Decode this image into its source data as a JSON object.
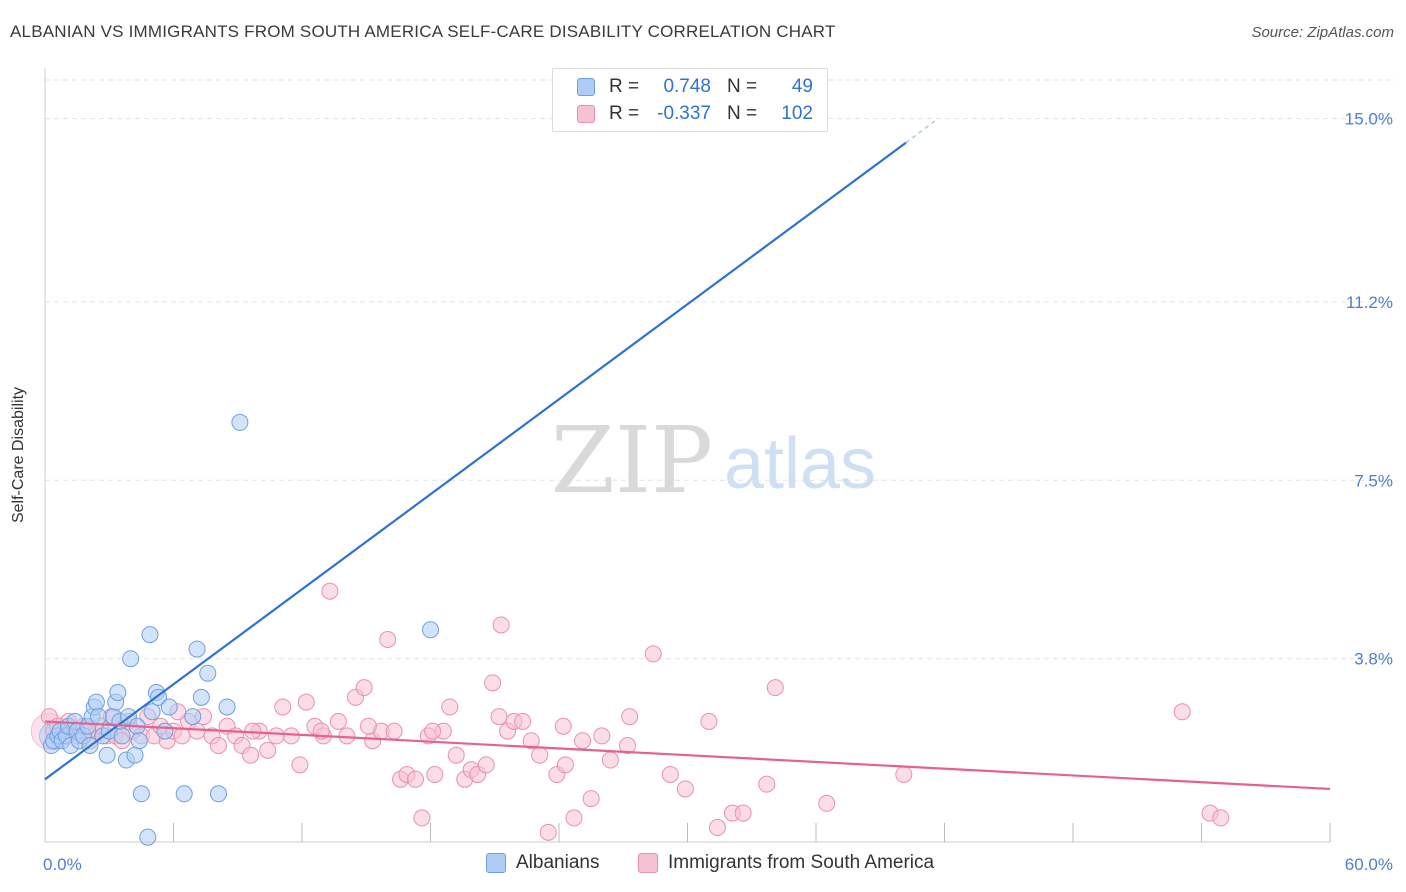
{
  "header": {
    "title": "ALBANIAN VS IMMIGRANTS FROM SOUTH AMERICA SELF-CARE DISABILITY CORRELATION CHART",
    "source": "Source: ZipAtlas.com"
  },
  "watermark": {
    "zip": "ZIP",
    "atlas": "atlas"
  },
  "legend": {
    "rows": [
      {
        "r_label": "R =",
        "r_value": "0.748",
        "n_label": "N =",
        "n_value": "49"
      },
      {
        "r_label": "R =",
        "r_value": "-0.337",
        "n_label": "N =",
        "n_value": "102"
      }
    ]
  },
  "bottom_legend": {
    "series_a": "Albanians",
    "series_b": "Immigrants from South America"
  },
  "colors": {
    "blue_fill": "#aecdf5",
    "blue_stroke": "#6f9fe0",
    "blue_line": "#2f73d0",
    "pink_fill": "#f6c1d2",
    "pink_stroke": "#ec8fae",
    "pink_line": "#e4628c",
    "axis_text": "#4a7fd6",
    "grid": "#e4e4e4"
  },
  "chart_data": {
    "type": "scatter",
    "title": "ALBANIAN VS IMMIGRANTS FROM SOUTH AMERICA SELF-CARE DISABILITY CORRELATION CHART",
    "xlabel": "",
    "ylabel": "Self-Care Disability",
    "xlim": [
      0,
      60
    ],
    "ylim": [
      0,
      15.8
    ],
    "x_tick_labels": [
      "0.0%",
      "60.0%"
    ],
    "y_ticks": [
      3.8,
      7.5,
      11.2,
      15.0
    ],
    "y_tick_labels": [
      "3.8%",
      "7.5%",
      "11.2%",
      "15.0%"
    ],
    "grid": "horizontal dashed",
    "legend_position": "top-center",
    "series": [
      {
        "name": "Albanians",
        "color": "#aecdf5",
        "trend": {
          "x": [
            0,
            40.2
          ],
          "y": [
            1.3,
            14.5
          ],
          "dashed_to": [
            41.7,
            15.0
          ]
        },
        "points": [
          [
            0.3,
            2.0
          ],
          [
            0.4,
            2.1
          ],
          [
            0.6,
            2.2
          ],
          [
            0.7,
            2.3
          ],
          [
            0.8,
            2.1
          ],
          [
            1.0,
            2.2
          ],
          [
            1.1,
            2.4
          ],
          [
            1.2,
            2.0
          ],
          [
            1.4,
            2.5
          ],
          [
            1.5,
            2.3
          ],
          [
            1.6,
            2.1
          ],
          [
            1.8,
            2.2
          ],
          [
            2.0,
            2.4
          ],
          [
            2.1,
            2.0
          ],
          [
            2.2,
            2.6
          ],
          [
            2.3,
            2.8
          ],
          [
            2.4,
            2.9
          ],
          [
            2.5,
            2.6
          ],
          [
            2.7,
            2.2
          ],
          [
            2.9,
            1.8
          ],
          [
            3.0,
            2.3
          ],
          [
            3.2,
            2.6
          ],
          [
            3.3,
            2.9
          ],
          [
            3.4,
            3.1
          ],
          [
            3.5,
            2.5
          ],
          [
            3.6,
            2.2
          ],
          [
            3.8,
            1.7
          ],
          [
            3.9,
            2.6
          ],
          [
            4.0,
            3.8
          ],
          [
            4.2,
            1.8
          ],
          [
            4.3,
            2.4
          ],
          [
            4.4,
            2.1
          ],
          [
            4.5,
            1.0
          ],
          [
            4.8,
            0.1
          ],
          [
            4.9,
            4.3
          ],
          [
            5.0,
            2.7
          ],
          [
            5.2,
            3.1
          ],
          [
            5.3,
            3.0
          ],
          [
            5.6,
            2.3
          ],
          [
            5.8,
            2.8
          ],
          [
            6.5,
            1.0
          ],
          [
            6.9,
            2.6
          ],
          [
            7.1,
            4.0
          ],
          [
            7.3,
            3.0
          ],
          [
            7.6,
            3.5
          ],
          [
            8.1,
            1.0
          ],
          [
            8.5,
            2.8
          ],
          [
            9.1,
            8.7
          ],
          [
            18.0,
            4.4
          ]
        ]
      },
      {
        "name": "Immigrants from South America",
        "color": "#f6c1d2",
        "trend": {
          "x": [
            0,
            60
          ],
          "y": [
            2.5,
            1.1
          ]
        },
        "points": [
          [
            0.2,
            2.6
          ],
          [
            0.4,
            2.3
          ],
          [
            0.6,
            2.4
          ],
          [
            0.9,
            2.2
          ],
          [
            1.1,
            2.5
          ],
          [
            1.5,
            2.2
          ],
          [
            1.8,
            2.4
          ],
          [
            2.1,
            2.1
          ],
          [
            2.4,
            2.3
          ],
          [
            2.6,
            2.4
          ],
          [
            2.9,
            2.2
          ],
          [
            3.1,
            2.6
          ],
          [
            3.3,
            2.2
          ],
          [
            3.6,
            2.1
          ],
          [
            3.9,
            2.5
          ],
          [
            4.1,
            2.3
          ],
          [
            4.5,
            2.2
          ],
          [
            4.8,
            2.6
          ],
          [
            5.1,
            2.2
          ],
          [
            5.4,
            2.4
          ],
          [
            5.7,
            2.1
          ],
          [
            6.0,
            2.3
          ],
          [
            6.4,
            2.2
          ],
          [
            6.7,
            2.5
          ],
          [
            7.1,
            2.3
          ],
          [
            7.4,
            2.6
          ],
          [
            7.8,
            2.2
          ],
          [
            8.1,
            2.0
          ],
          [
            8.5,
            2.4
          ],
          [
            8.9,
            2.2
          ],
          [
            9.2,
            2.0
          ],
          [
            9.6,
            1.8
          ],
          [
            10.0,
            2.3
          ],
          [
            10.4,
            1.9
          ],
          [
            10.8,
            2.2
          ],
          [
            11.1,
            2.8
          ],
          [
            11.5,
            2.2
          ],
          [
            11.9,
            1.6
          ],
          [
            12.2,
            2.9
          ],
          [
            12.6,
            2.4
          ],
          [
            13.0,
            2.2
          ],
          [
            13.3,
            5.2
          ],
          [
            13.7,
            2.5
          ],
          [
            14.1,
            2.2
          ],
          [
            14.5,
            3.0
          ],
          [
            14.9,
            3.2
          ],
          [
            15.3,
            2.1
          ],
          [
            15.7,
            2.3
          ],
          [
            16.0,
            4.2
          ],
          [
            16.3,
            2.3
          ],
          [
            16.6,
            1.3
          ],
          [
            16.9,
            1.4
          ],
          [
            17.3,
            1.3
          ],
          [
            17.6,
            0.5
          ],
          [
            17.9,
            2.2
          ],
          [
            18.2,
            1.4
          ],
          [
            18.6,
            2.3
          ],
          [
            18.9,
            2.8
          ],
          [
            19.2,
            1.8
          ],
          [
            19.6,
            1.3
          ],
          [
            19.9,
            1.5
          ],
          [
            20.2,
            1.4
          ],
          [
            20.6,
            1.6
          ],
          [
            20.9,
            3.3
          ],
          [
            21.3,
            4.5
          ],
          [
            21.6,
            2.3
          ],
          [
            21.9,
            2.5
          ],
          [
            22.3,
            2.5
          ],
          [
            22.7,
            2.1
          ],
          [
            23.1,
            1.8
          ],
          [
            23.5,
            0.2
          ],
          [
            23.9,
            1.4
          ],
          [
            24.3,
            1.6
          ],
          [
            24.7,
            0.5
          ],
          [
            25.1,
            2.1
          ],
          [
            25.5,
            0.9
          ],
          [
            26.0,
            2.2
          ],
          [
            26.4,
            1.7
          ],
          [
            27.2,
            2.0
          ],
          [
            28.4,
            3.9
          ],
          [
            29.2,
            1.4
          ],
          [
            29.9,
            1.1
          ],
          [
            31.4,
            0.3
          ],
          [
            32.1,
            0.6
          ],
          [
            32.6,
            0.6
          ],
          [
            33.7,
            1.2
          ],
          [
            34.1,
            3.2
          ],
          [
            36.5,
            0.8
          ],
          [
            40.1,
            1.4
          ],
          [
            53.1,
            2.7
          ],
          [
            54.4,
            0.6
          ],
          [
            54.9,
            0.5
          ],
          [
            2.0,
            2.3
          ],
          [
            6.2,
            2.7
          ],
          [
            9.7,
            2.3
          ],
          [
            12.9,
            2.3
          ],
          [
            15.1,
            2.4
          ],
          [
            18.1,
            2.3
          ],
          [
            21.2,
            2.6
          ],
          [
            24.2,
            2.4
          ],
          [
            27.3,
            2.6
          ],
          [
            31.0,
            2.5
          ]
        ]
      }
    ]
  }
}
